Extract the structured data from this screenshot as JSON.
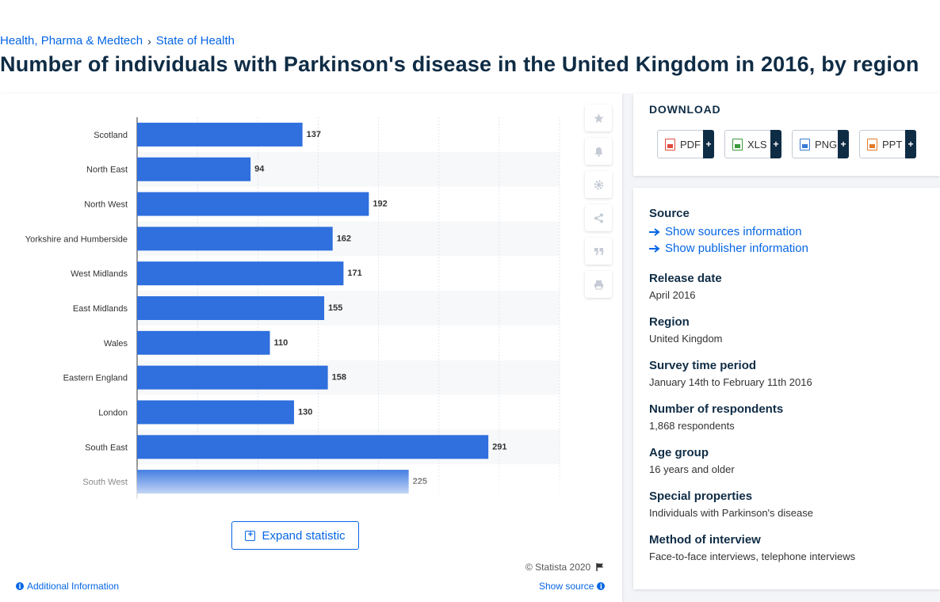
{
  "breadcrumb": {
    "item1": "Health, Pharma & Medtech",
    "sep": "›",
    "item2": "State of Health"
  },
  "title": "Number of individuals with Parkinson's disease in the United Kingdom in 2016, by region",
  "chart_data": {
    "type": "bar",
    "orientation": "horizontal",
    "categories": [
      "Scotland",
      "North East",
      "North West",
      "Yorkshire and Humberside",
      "West Midlands",
      "East Midlands",
      "Wales",
      "Eastern England",
      "London",
      "South East",
      "South West"
    ],
    "values": [
      137,
      94,
      192,
      162,
      171,
      155,
      110,
      158,
      130,
      291,
      225
    ],
    "bar_color": "#2f6fde",
    "xlim": [
      0,
      350
    ],
    "grid": true,
    "data_labels": true
  },
  "toolbar": {
    "icons": [
      "star-icon",
      "bell-icon",
      "gear-icon",
      "share-icon",
      "quote-icon",
      "print-icon"
    ]
  },
  "expand_label": "Expand statistic",
  "copyright": "© Statista 2020",
  "additional_info": "Additional Information",
  "show_source": "Show source",
  "download": {
    "title": "DOWNLOAD",
    "buttons": [
      {
        "label": "PDF",
        "color": "#e04a3c"
      },
      {
        "label": "XLS",
        "color": "#3a9a3a"
      },
      {
        "label": "PNG",
        "color": "#3b7bd4"
      },
      {
        "label": "PPT",
        "color": "#e07b2c"
      }
    ],
    "plus": "+"
  },
  "info": {
    "source_head": "Source",
    "show_sources": "Show sources information",
    "show_publisher": "Show publisher information",
    "release_head": "Release date",
    "release_val": "April 2016",
    "region_head": "Region",
    "region_val": "United Kingdom",
    "survey_head": "Survey time period",
    "survey_val": "January 14th to February 11th 2016",
    "respondents_head": "Number of respondents",
    "respondents_val": "1,868 respondents",
    "age_head": "Age group",
    "age_val": "16 years and older",
    "special_head": "Special properties",
    "special_val": "Individuals with Parkinson's disease",
    "method_head": "Method of interview",
    "method_val": "Face-to-face interviews, telephone interviews"
  }
}
